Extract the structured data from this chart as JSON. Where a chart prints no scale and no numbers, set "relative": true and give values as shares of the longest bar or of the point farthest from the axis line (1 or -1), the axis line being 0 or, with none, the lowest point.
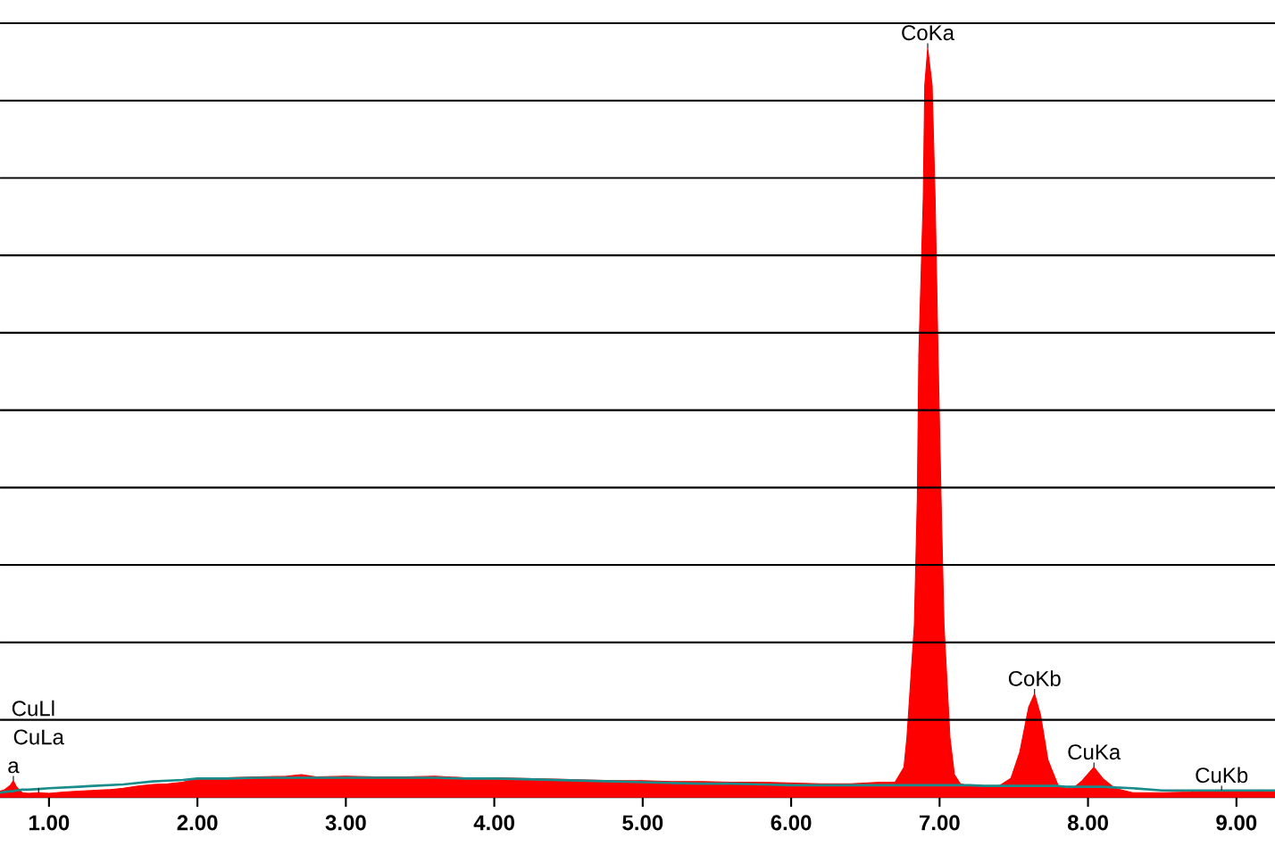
{
  "chart_data": {
    "type": "area",
    "relative": true,
    "grid": "y",
    "x": [
      0.67,
      0.7,
      0.74,
      0.76,
      0.78,
      0.82,
      0.86,
      0.93,
      1.0,
      1.1,
      1.2,
      1.3,
      1.4,
      1.5,
      1.6,
      1.7,
      1.8,
      1.9,
      2.0,
      2.2,
      2.4,
      2.6,
      2.7,
      2.8,
      3.0,
      3.2,
      3.4,
      3.6,
      3.8,
      4.0,
      4.2,
      4.4,
      4.6,
      4.8,
      5.0,
      5.2,
      5.4,
      5.6,
      5.8,
      6.0,
      6.2,
      6.4,
      6.6,
      6.7,
      6.76,
      6.78,
      6.83,
      6.85,
      6.86,
      6.89,
      6.9,
      6.92,
      6.95,
      6.97,
      6.99,
      7.01,
      7.03,
      7.07,
      7.1,
      7.14,
      7.2,
      7.3,
      7.4,
      7.48,
      7.54,
      7.6,
      7.64,
      7.68,
      7.73,
      7.8,
      7.85,
      7.9,
      7.96,
      8.04,
      8.1,
      8.18,
      8.3,
      8.5,
      8.7,
      8.9,
      9.1,
      9.26
    ],
    "series": [
      {
        "color": "#ff0000",
        "values": [
          0.008,
          0.01,
          0.016,
          0.022,
          0.014,
          0.006,
          0.005,
          0.006,
          0.005,
          0.007,
          0.008,
          0.009,
          0.01,
          0.012,
          0.015,
          0.017,
          0.018,
          0.02,
          0.025,
          0.026,
          0.027,
          0.028,
          0.03,
          0.027,
          0.028,
          0.027,
          0.027,
          0.028,
          0.026,
          0.026,
          0.025,
          0.024,
          0.023,
          0.022,
          0.022,
          0.021,
          0.021,
          0.02,
          0.02,
          0.019,
          0.018,
          0.018,
          0.02,
          0.02,
          0.04,
          0.08,
          0.23,
          0.4,
          0.59,
          0.8,
          0.95,
          1.0,
          0.95,
          0.8,
          0.59,
          0.4,
          0.23,
          0.08,
          0.03,
          0.018,
          0.015,
          0.014,
          0.015,
          0.025,
          0.06,
          0.12,
          0.138,
          0.11,
          0.05,
          0.015,
          0.012,
          0.012,
          0.022,
          0.04,
          0.025,
          0.012,
          0.006,
          0.006,
          0.007,
          0.009,
          0.008,
          0.007
        ]
      },
      {
        "type": "line",
        "color": "#1a8c8c",
        "values": [
          0.006,
          0.007,
          0.008,
          0.008,
          0.009,
          0.01,
          0.01,
          0.011,
          0.012,
          0.013,
          0.014,
          0.015,
          0.016,
          0.017,
          0.019,
          0.021,
          0.022,
          0.023,
          0.025,
          0.025,
          0.026,
          0.026,
          0.026,
          0.026,
          0.026,
          0.026,
          0.026,
          0.026,
          0.025,
          0.025,
          0.024,
          0.023,
          0.022,
          0.021,
          0.02,
          0.019,
          0.018,
          0.018,
          0.017,
          0.016,
          0.016,
          0.016,
          0.016,
          0.016,
          0.016,
          0.016,
          0.016,
          0.016,
          0.016,
          0.016,
          0.016,
          0.016,
          0.016,
          0.016,
          0.016,
          0.016,
          0.016,
          0.016,
          0.016,
          0.016,
          0.016,
          0.015,
          0.015,
          0.015,
          0.015,
          0.015,
          0.015,
          0.015,
          0.015,
          0.015,
          0.014,
          0.014,
          0.014,
          0.014,
          0.014,
          0.013,
          0.012,
          0.009,
          0.009,
          0.009,
          0.009,
          0.009
        ]
      }
    ],
    "xlim": [
      0.67,
      9.26
    ],
    "xticks": [
      {
        "value": 1,
        "label": "1.00"
      },
      {
        "value": 2,
        "label": "2.00"
      },
      {
        "value": 3,
        "label": "3.00"
      },
      {
        "value": 4,
        "label": "4.00"
      },
      {
        "value": 5,
        "label": "5.00"
      },
      {
        "value": 6,
        "label": "6.00"
      },
      {
        "value": 7,
        "label": "7.00"
      },
      {
        "value": 8,
        "label": "8.00"
      },
      {
        "value": 9,
        "label": "9.00"
      }
    ],
    "annotations": [
      {
        "text": "CoKa",
        "x": 6.92,
        "y": 1.0
      },
      {
        "text": "CoKb",
        "x": 7.64,
        "y": 0.138
      },
      {
        "text": "CuKa",
        "x": 8.04,
        "y": 0.04
      },
      {
        "text": "CuKb",
        "x": 8.9,
        "y": 0.009
      },
      {
        "text": "a",
        "x": 0.76,
        "y": 0.022
      },
      {
        "text": "CuLa",
        "x": 0.93,
        "y": 0.006
      },
      "CuLl"
    ]
  }
}
